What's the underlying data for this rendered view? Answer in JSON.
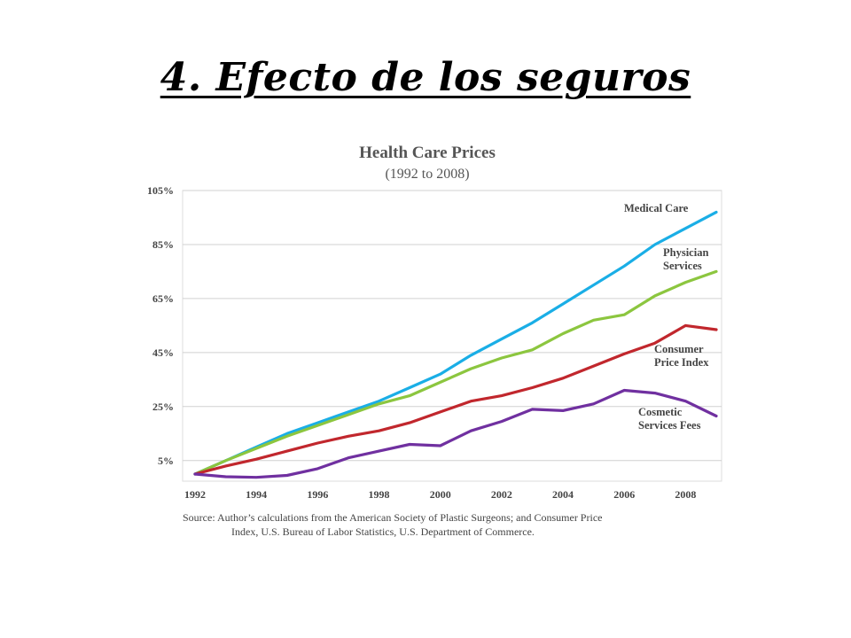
{
  "slide": {
    "title": "4. Efecto de los seguros"
  },
  "chart_data": {
    "type": "line",
    "title": "Health Care Prices",
    "subtitle": "(1992 to 2008)",
    "xlabel": "",
    "ylabel": "",
    "x": [
      1992,
      1993,
      1994,
      1995,
      1996,
      1997,
      1998,
      1999,
      2000,
      2001,
      2002,
      2003,
      2004,
      2005,
      2006,
      2007,
      2008,
      2009
    ],
    "x_ticks": [
      "1992",
      "1994",
      "1996",
      "1998",
      "2000",
      "2002",
      "2004",
      "2006",
      "2008"
    ],
    "y_ticks": [
      "5%",
      "25%",
      "45%",
      "65%",
      "85%",
      "105%"
    ],
    "ylim": [
      0,
      105
    ],
    "xlim": [
      1992,
      2009
    ],
    "grid": true,
    "series": [
      {
        "name": "Medical Care",
        "label_lines": [
          "Medical Care"
        ],
        "color": "#1aaee6",
        "values": [
          0,
          5,
          10,
          15,
          19,
          23,
          27,
          32,
          37,
          44,
          50,
          56,
          63,
          70,
          77,
          85,
          91,
          97
        ]
      },
      {
        "name": "Physician Services",
        "label_lines": [
          "Physician",
          "Services"
        ],
        "color": "#8cc63f",
        "values": [
          0,
          5,
          9.5,
          14,
          18,
          22,
          26,
          29,
          34,
          39,
          43,
          46,
          52,
          57,
          59,
          66,
          71,
          75
        ]
      },
      {
        "name": "Consumer Price Index",
        "label_lines": [
          "Consumer",
          "Price Index"
        ],
        "color": "#c1272d",
        "values": [
          0,
          3,
          5.5,
          8.5,
          11.5,
          14,
          16,
          19,
          23,
          27,
          29,
          32,
          35.5,
          40,
          44.5,
          48.5,
          55,
          53.5
        ]
      },
      {
        "name": "Cosmetic Services Fees",
        "label_lines": [
          "Cosmetic",
          "Services Fees"
        ],
        "color": "#7030a0",
        "values": [
          0,
          -1,
          -1.2,
          -0.5,
          2,
          6,
          8.5,
          11,
          10.5,
          16,
          19.5,
          24,
          23.5,
          26,
          31,
          30,
          27,
          21.5
        ]
      }
    ],
    "source_lines": [
      "Source:  Author’s calculations from the American Society of Plastic Surgeons; and Consumer Price",
      "Index, U.S. Bureau of Labor Statistics, U.S. Department of Commerce."
    ]
  }
}
